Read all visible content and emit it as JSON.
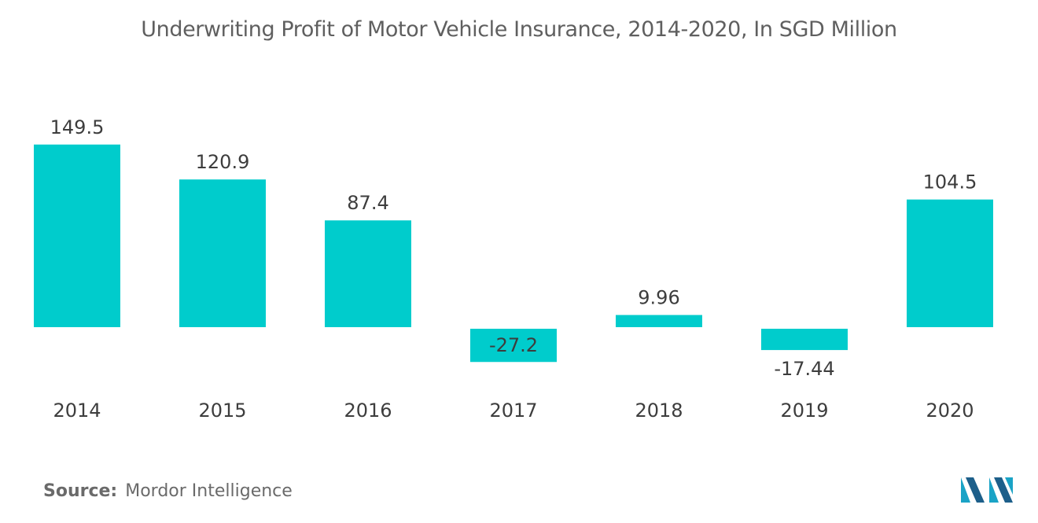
{
  "chart_data": {
    "type": "bar",
    "title": "Underwriting Profit of Motor Vehicle Insurance, 2014-2020, In SGD Million",
    "categories": [
      "2014",
      "2015",
      "2016",
      "2017",
      "2018",
      "2019",
      "2020"
    ],
    "values": [
      149.5,
      120.9,
      87.4,
      -27.2,
      9.96,
      -17.44,
      104.5
    ],
    "value_labels": [
      "149.5",
      "120.9",
      "87.4",
      "-27.2",
      "9.96",
      "-17.44",
      "104.5"
    ],
    "xlabel": "",
    "ylabel": "",
    "ylim": [
      -30,
      150
    ],
    "grid": false,
    "legend": "none",
    "bar_color": "#00CCCC",
    "label_color": "#3d3d3d"
  },
  "source": {
    "label": "Source:",
    "text": "Mordor Intelligence"
  },
  "logo": {
    "icon": "mordor-intelligence-logo-icon",
    "colors": [
      "#1aa3c6",
      "#1d5f8a"
    ]
  }
}
